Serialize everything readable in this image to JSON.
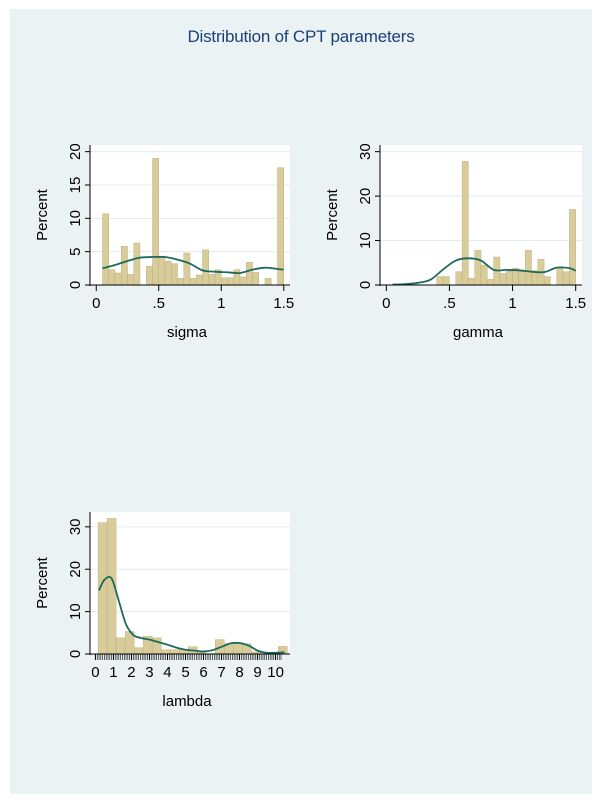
{
  "title": "Distribution of CPT parameters",
  "colors": {
    "background": "#eaf2f3",
    "plot_area": "#ffffff",
    "bar_fill": "#d8cc9b",
    "bar_stroke": "#b8a970",
    "density_line": "#1d6a5c",
    "title": "#1c3f7a",
    "grid": "#e1ecee"
  },
  "chart_data": [
    {
      "type": "bar",
      "title": "",
      "xlabel": "sigma",
      "ylabel": "Percent",
      "xlim": [
        -0.05,
        1.55
      ],
      "ylim": [
        0,
        21
      ],
      "bin_width": 0.05,
      "x_ticks": [
        0,
        0.5,
        1,
        1.5
      ],
      "x_tick_labels": [
        "0",
        ".5",
        "1",
        "1.5"
      ],
      "y_ticks": [
        0,
        5,
        10,
        15,
        20
      ],
      "y_tick_labels": [
        "0",
        "5",
        "10",
        "15",
        "20"
      ],
      "grid": true,
      "legend": "none",
      "bins": [
        {
          "x": 0.075,
          "y": 10.7
        },
        {
          "x": 0.125,
          "y": 2.3
        },
        {
          "x": 0.175,
          "y": 1.8
        },
        {
          "x": 0.225,
          "y": 5.8
        },
        {
          "x": 0.275,
          "y": 1.6
        },
        {
          "x": 0.325,
          "y": 6.3
        },
        {
          "x": 0.425,
          "y": 2.8
        },
        {
          "x": 0.475,
          "y": 19.0
        },
        {
          "x": 0.525,
          "y": 4.3
        },
        {
          "x": 0.575,
          "y": 3.6
        },
        {
          "x": 0.625,
          "y": 3.2
        },
        {
          "x": 0.675,
          "y": 1.0
        },
        {
          "x": 0.725,
          "y": 4.8
        },
        {
          "x": 0.775,
          "y": 1.0
        },
        {
          "x": 0.825,
          "y": 1.5
        },
        {
          "x": 0.875,
          "y": 5.3
        },
        {
          "x": 0.925,
          "y": 1.6
        },
        {
          "x": 0.975,
          "y": 2.3
        },
        {
          "x": 1.025,
          "y": 1.1
        },
        {
          "x": 1.075,
          "y": 1.1
        },
        {
          "x": 1.125,
          "y": 2.3
        },
        {
          "x": 1.175,
          "y": 1.2
        },
        {
          "x": 1.225,
          "y": 3.4
        },
        {
          "x": 1.275,
          "y": 1.9
        },
        {
          "x": 1.375,
          "y": 1.0
        },
        {
          "x": 1.475,
          "y": 17.6
        }
      ],
      "density": {
        "x": [
          0.05,
          0.15,
          0.25,
          0.35,
          0.45,
          0.55,
          0.65,
          0.75,
          0.85,
          0.95,
          1.05,
          1.15,
          1.25,
          1.35,
          1.45,
          1.5
        ],
        "y": [
          2.5,
          3.0,
          3.6,
          4.1,
          4.2,
          4.2,
          3.8,
          3.2,
          2.2,
          2.0,
          1.9,
          1.8,
          2.3,
          2.6,
          2.4,
          2.3
        ]
      }
    },
    {
      "type": "bar",
      "title": "",
      "xlabel": "gamma",
      "ylabel": "Percent",
      "xlim": [
        -0.05,
        1.55
      ],
      "ylim": [
        0,
        31.5
      ],
      "bin_width": 0.05,
      "x_ticks": [
        0,
        0.5,
        1,
        1.5
      ],
      "x_tick_labels": [
        "0",
        ".5",
        "1",
        "1.5"
      ],
      "y_ticks": [
        0,
        10,
        20,
        30
      ],
      "y_tick_labels": [
        "0",
        "10",
        "20",
        "30"
      ],
      "grid": true,
      "legend": "none",
      "bins": [
        {
          "x": 0.225,
          "y": 0.4
        },
        {
          "x": 0.425,
          "y": 1.9
        },
        {
          "x": 0.475,
          "y": 1.9
        },
        {
          "x": 0.575,
          "y": 3.0
        },
        {
          "x": 0.625,
          "y": 27.8
        },
        {
          "x": 0.675,
          "y": 1.5
        },
        {
          "x": 0.725,
          "y": 7.8
        },
        {
          "x": 0.775,
          "y": 4.5
        },
        {
          "x": 0.825,
          "y": 1.3
        },
        {
          "x": 0.875,
          "y": 6.3
        },
        {
          "x": 0.925,
          "y": 2.6
        },
        {
          "x": 0.975,
          "y": 3.1
        },
        {
          "x": 1.025,
          "y": 3.8
        },
        {
          "x": 1.075,
          "y": 3.0
        },
        {
          "x": 1.125,
          "y": 7.8
        },
        {
          "x": 1.175,
          "y": 3.2
        },
        {
          "x": 1.225,
          "y": 5.8
        },
        {
          "x": 1.275,
          "y": 1.9
        },
        {
          "x": 1.375,
          "y": 3.8
        },
        {
          "x": 1.425,
          "y": 3.0
        },
        {
          "x": 1.475,
          "y": 17.0
        }
      ],
      "density": {
        "x": [
          0.05,
          0.15,
          0.25,
          0.35,
          0.45,
          0.55,
          0.65,
          0.75,
          0.85,
          0.95,
          1.05,
          1.15,
          1.25,
          1.35,
          1.45,
          1.5
        ],
        "y": [
          0.1,
          0.2,
          0.5,
          1.2,
          3.5,
          5.5,
          6.0,
          5.5,
          3.4,
          3.4,
          3.3,
          3.0,
          2.9,
          3.9,
          3.8,
          3.2
        ]
      }
    },
    {
      "type": "bar",
      "title": "",
      "xlabel": "lambda",
      "ylabel": "Percent",
      "xlim": [
        -0.3,
        10.8
      ],
      "ylim": [
        0,
        33.5
      ],
      "bin_width": 0.5,
      "x_ticks": [
        0,
        1,
        2,
        3,
        4,
        5,
        6,
        7,
        8,
        9,
        10
      ],
      "x_tick_labels": [
        "0",
        "1",
        "2",
        "3",
        "4",
        "5",
        "6",
        "7",
        "8",
        "9",
        "10"
      ],
      "y_ticks": [
        0,
        10,
        20,
        30
      ],
      "y_tick_labels": [
        "0",
        "10",
        "20",
        "30"
      ],
      "grid": true,
      "legend": "none",
      "bins": [
        {
          "x": 0.4,
          "y": 31.0
        },
        {
          "x": 0.9,
          "y": 32.0
        },
        {
          "x": 1.4,
          "y": 3.8
        },
        {
          "x": 1.9,
          "y": 5.3
        },
        {
          "x": 2.4,
          "y": 1.5
        },
        {
          "x": 2.9,
          "y": 4.2
        },
        {
          "x": 3.4,
          "y": 3.8
        },
        {
          "x": 3.9,
          "y": 1.0
        },
        {
          "x": 4.4,
          "y": 1.0
        },
        {
          "x": 4.9,
          "y": 1.0
        },
        {
          "x": 5.4,
          "y": 1.7
        },
        {
          "x": 5.9,
          "y": 0.5
        },
        {
          "x": 6.9,
          "y": 3.4
        },
        {
          "x": 7.4,
          "y": 2.4
        },
        {
          "x": 7.9,
          "y": 2.4
        },
        {
          "x": 8.4,
          "y": 2.4
        },
        {
          "x": 8.9,
          "y": 0.5
        },
        {
          "x": 10.4,
          "y": 1.8
        }
      ],
      "density": {
        "x": [
          0.2,
          0.5,
          0.9,
          1.3,
          1.7,
          2.1,
          2.5,
          3.0,
          3.5,
          4.0,
          4.5,
          5.0,
          5.5,
          6.0,
          6.5,
          7.0,
          7.5,
          8.0,
          8.5,
          9.0,
          9.5,
          10.0,
          10.5
        ],
        "y": [
          15.0,
          17.5,
          17.8,
          12.5,
          7.0,
          4.5,
          3.8,
          3.4,
          2.8,
          2.2,
          1.5,
          1.0,
          0.8,
          0.6,
          0.9,
          1.7,
          2.5,
          2.6,
          2.0,
          0.8,
          0.3,
          0.3,
          0.4
        ]
      }
    }
  ]
}
